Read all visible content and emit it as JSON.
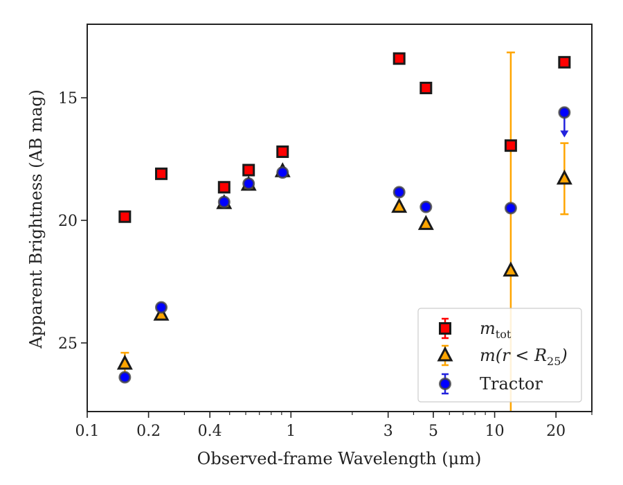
{
  "chart_data": {
    "type": "scatter",
    "title": "",
    "xlabel": "Observed-frame Wavelength (μm)",
    "ylabel": "Apparent Brightness (AB mag)",
    "xscale": "log",
    "xlim": [
      0.1,
      30
    ],
    "ylim": [
      27.8,
      12.0
    ],
    "y_inverted": true,
    "grid": false,
    "legend_position": "lower-right",
    "x_ticks": [
      {
        "value": 0.1,
        "label": "0.1"
      },
      {
        "value": 0.2,
        "label": "0.2"
      },
      {
        "value": 0.4,
        "label": "0.4"
      },
      {
        "value": 1,
        "label": "1"
      },
      {
        "value": 3,
        "label": "3"
      },
      {
        "value": 5,
        "label": "5"
      },
      {
        "value": 10,
        "label": "10"
      },
      {
        "value": 20,
        "label": "20"
      }
    ],
    "y_ticks": [
      {
        "value": 15,
        "label": "15"
      },
      {
        "value": 20,
        "label": "20"
      },
      {
        "value": 25,
        "label": "25"
      }
    ],
    "series": [
      {
        "name": "m_tot",
        "legend_main": "m",
        "legend_sub": "tot",
        "marker": "square",
        "color": "#ff0000",
        "edge_color": "#1a1a1a",
        "points": [
          {
            "x": 0.153,
            "y": 19.85
          },
          {
            "x": 0.231,
            "y": 18.1
          },
          {
            "x": 0.47,
            "y": 18.65
          },
          {
            "x": 0.62,
            "y": 17.95
          },
          {
            "x": 0.91,
            "y": 17.2
          },
          {
            "x": 3.4,
            "y": 13.4
          },
          {
            "x": 4.6,
            "y": 14.6
          },
          {
            "x": 12.0,
            "y": 16.95
          },
          {
            "x": 22.0,
            "y": 13.55
          }
        ]
      },
      {
        "name": "m(r < R_25)",
        "legend_main": "m(r < R",
        "legend_sub": "25",
        "legend_tail": ")",
        "marker": "triangle",
        "color": "#ffa500",
        "edge_color": "#1a1a1a",
        "points": [
          {
            "x": 0.153,
            "y": 25.85,
            "err_low": 0.45,
            "err_high": 0.45
          },
          {
            "x": 0.231,
            "y": 23.85
          },
          {
            "x": 0.47,
            "y": 19.3
          },
          {
            "x": 0.62,
            "y": 18.55
          },
          {
            "x": 0.91,
            "y": 18.0
          },
          {
            "x": 3.4,
            "y": 19.45
          },
          {
            "x": 4.6,
            "y": 20.15
          },
          {
            "x": 12.0,
            "y": 22.05,
            "err_low": 8.9,
            "err_high": 8.9
          },
          {
            "x": 22.0,
            "y": 18.3,
            "err_low": 1.45,
            "err_high": 1.45
          }
        ]
      },
      {
        "name": "Tractor",
        "marker": "circle",
        "color": "#0000ff",
        "edge_color": "#444444",
        "points": [
          {
            "x": 0.153,
            "y": 26.4
          },
          {
            "x": 0.231,
            "y": 23.55
          },
          {
            "x": 0.47,
            "y": 19.25
          },
          {
            "x": 0.62,
            "y": 18.5
          },
          {
            "x": 0.91,
            "y": 18.05
          },
          {
            "x": 3.4,
            "y": 18.85
          },
          {
            "x": 4.6,
            "y": 19.45
          },
          {
            "x": 12.0,
            "y": 19.5
          },
          {
            "x": 22.0,
            "y": 15.6,
            "upper_limit": true
          }
        ]
      }
    ]
  }
}
